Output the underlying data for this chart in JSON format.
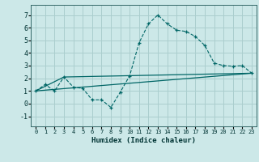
{
  "xlabel": "Humidex (Indice chaleur)",
  "ylabel": "",
  "bg_color": "#cce8e8",
  "grid_color": "#aacece",
  "line_color": "#006666",
  "xlim": [
    -0.5,
    23.5
  ],
  "ylim": [
    -1.8,
    7.8
  ],
  "xticks": [
    0,
    1,
    2,
    3,
    4,
    5,
    6,
    7,
    8,
    9,
    10,
    11,
    12,
    13,
    14,
    15,
    16,
    17,
    18,
    19,
    20,
    21,
    22,
    23
  ],
  "yticks": [
    -1,
    0,
    1,
    2,
    3,
    4,
    5,
    6,
    7
  ],
  "series1_x": [
    0,
    1,
    2,
    3,
    4,
    5,
    6,
    7,
    8,
    9,
    10,
    11,
    12,
    13,
    14,
    15,
    16,
    17,
    18,
    19,
    20,
    21,
    22,
    23
  ],
  "series1_y": [
    1.0,
    1.5,
    1.0,
    2.1,
    1.3,
    1.2,
    0.3,
    0.3,
    -0.3,
    0.9,
    2.2,
    4.8,
    6.3,
    7.0,
    6.3,
    5.8,
    5.7,
    5.3,
    4.6,
    3.2,
    3.0,
    2.95,
    3.0,
    2.4
  ],
  "series2_x": [
    0,
    23
  ],
  "series2_y": [
    1.0,
    2.4
  ],
  "series3_x": [
    0,
    3,
    23
  ],
  "series3_y": [
    1.0,
    2.1,
    2.4
  ]
}
